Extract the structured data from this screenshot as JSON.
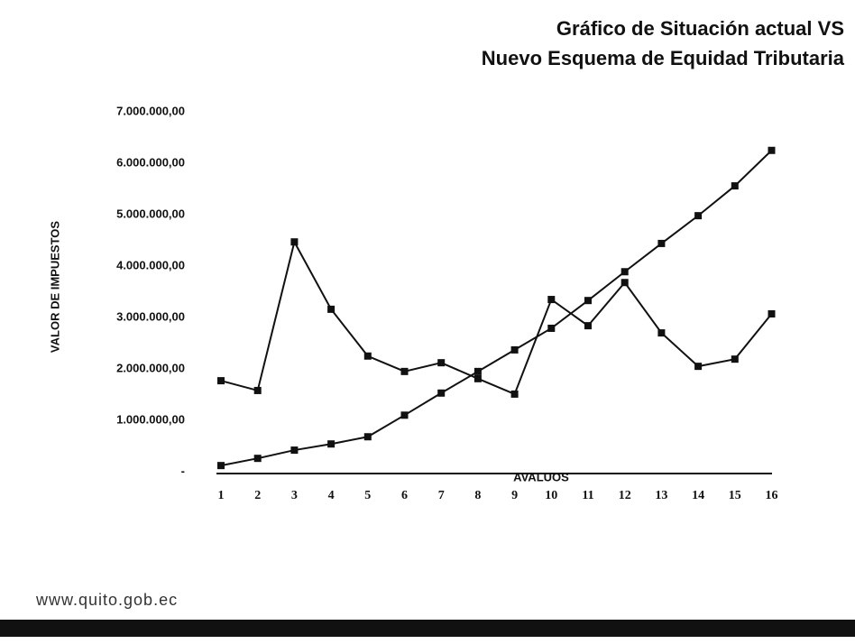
{
  "chart_data": {
    "type": "line",
    "title": [
      "Gráfico de Situación actual VS",
      "Nuevo Esquema de Equidad Tributaria"
    ],
    "x_label": "AVALUOS",
    "y_label": "VALOR DE IMPUESTOS",
    "categories": [
      1,
      2,
      3,
      4,
      5,
      6,
      7,
      8,
      9,
      10,
      11,
      12,
      13,
      14,
      15,
      16
    ],
    "series": [
      {
        "color": "#111111",
        "values": [
          1770000,
          1580000,
          4470000,
          3160000,
          2250000,
          1950000,
          2120000,
          1810000,
          1510000,
          3350000,
          2840000,
          3680000,
          2700000,
          2050000,
          2190000,
          3070000
        ]
      },
      {
        "color": "#111111",
        "values": [
          120000,
          260000,
          420000,
          540000,
          680000,
          1100000,
          1530000,
          1950000,
          2370000,
          2790000,
          3330000,
          3890000,
          4440000,
          4980000,
          5560000,
          6250000
        ]
      }
    ],
    "ylim": [
      0,
      7000000
    ],
    "yticks": [
      {
        "value": 0,
        "label": "-"
      },
      {
        "value": 1000000,
        "label": "1.000.000,00"
      },
      {
        "value": 2000000,
        "label": "2.000.000,00"
      },
      {
        "value": 3000000,
        "label": "3.000.000,00"
      },
      {
        "value": 4000000,
        "label": "4.000.000,00"
      },
      {
        "value": 5000000,
        "label": "5.000.000,00"
      },
      {
        "value": 6000000,
        "label": "6.000.000,00"
      },
      {
        "value": 7000000,
        "label": "7.000.000,00"
      }
    ],
    "grid": false
  },
  "footer": "www.quito.gob.ec"
}
